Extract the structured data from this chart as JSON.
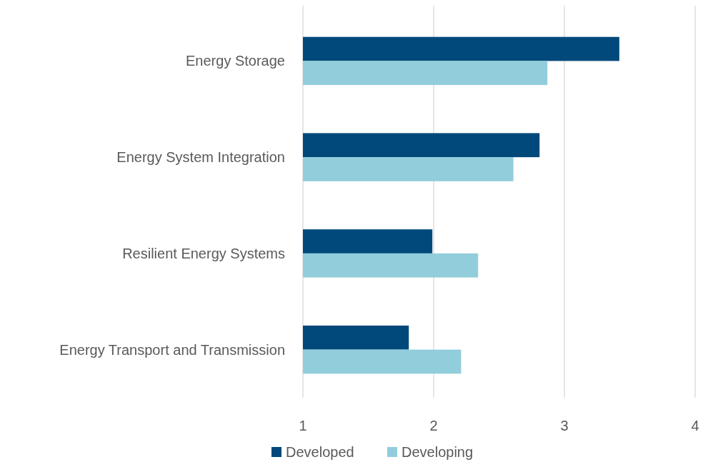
{
  "chart_data": {
    "type": "bar",
    "orientation": "horizontal",
    "categories": [
      "Energy Storage",
      "Energy System Integration",
      "Resilient Energy Systems",
      "Energy Transport and Transmission"
    ],
    "series": [
      {
        "name": "Developed",
        "color": "#00497a",
        "values": [
          3.42,
          2.81,
          1.99,
          1.81
        ]
      },
      {
        "name": "Developing",
        "color": "#92cddc",
        "values": [
          2.87,
          2.61,
          2.34,
          2.21
        ]
      }
    ],
    "xlim": [
      1,
      4
    ],
    "xticks": [
      1,
      2,
      3,
      4
    ],
    "grid": "x",
    "legend": "bottom"
  }
}
